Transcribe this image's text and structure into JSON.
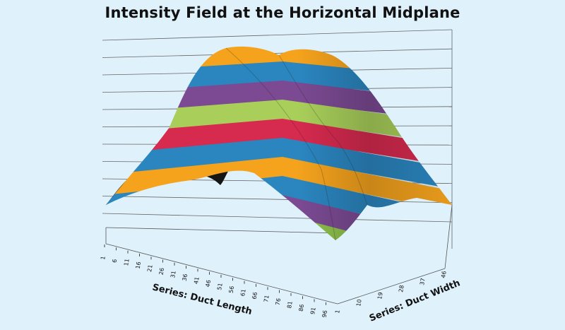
{
  "chart_data": {
    "type": "surface",
    "title": "Intensity Field at the Horizontal Midplane",
    "x_axis": {
      "label": "Series: Duct Length",
      "ticks": [
        "1",
        "6",
        "11",
        "16",
        "21",
        "26",
        "31",
        "36",
        "41",
        "46",
        "51",
        "56",
        "61",
        "66",
        "71",
        "76",
        "81",
        "86",
        "91",
        "96"
      ]
    },
    "y_axis": {
      "label": "Series: Duct Width",
      "ticks": [
        "1",
        "10",
        "19",
        "28",
        "37",
        "46"
      ]
    },
    "z_axis": {
      "gridlines": 11,
      "tick_labels_shown": false
    },
    "color_bands": [
      "#f5a31d",
      "#2b86c0",
      "#7b4a93",
      "#a9cf5a",
      "#d62a4f",
      "#2b86c0",
      "#f5a31d",
      "#2b86c0",
      "#7b4a93",
      "#8dc04b"
    ],
    "description_of_shape": "double-humped dome peaking near the middle of duct length, falling to a minimum at the far corner"
  }
}
